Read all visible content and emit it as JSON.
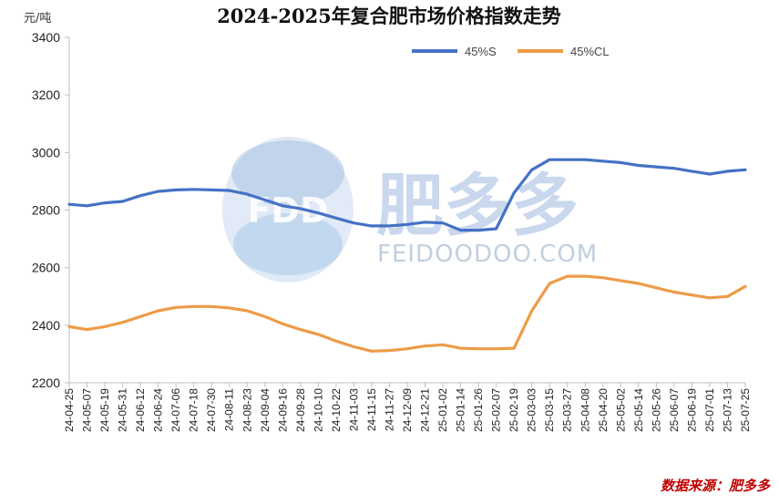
{
  "watermark": {
    "logo_text": "FDD",
    "brand": "肥多多",
    "domain": "FEIDOODOO.COM"
  },
  "source_label": "数据来源：肥多多",
  "chart_data": {
    "type": "line",
    "title": "2024-2025年复合肥市场价格指数走势",
    "ylabel": "元/吨",
    "xlabel": "",
    "ylim": [
      2200,
      3400
    ],
    "yticks": [
      2200,
      2400,
      2600,
      2800,
      3000,
      3200,
      3400
    ],
    "legend_position": "top-right",
    "grid": false,
    "categories": [
      "24-04-25",
      "24-05-07",
      "24-05-19",
      "24-05-31",
      "24-06-12",
      "24-06-24",
      "24-07-06",
      "24-07-18",
      "24-07-30",
      "24-08-11",
      "24-08-23",
      "24-09-04",
      "24-09-16",
      "24-09-28",
      "24-10-10",
      "24-10-22",
      "24-11-03",
      "24-11-15",
      "24-11-27",
      "24-12-09",
      "24-12-21",
      "25-01-02",
      "25-01-14",
      "25-01-26",
      "25-02-07",
      "25-02-19",
      "25-03-03",
      "25-03-15",
      "25-03-27",
      "25-04-08",
      "25-04-20",
      "25-05-02",
      "25-05-14",
      "25-05-26",
      "25-06-07",
      "25-06-19",
      "25-07-01",
      "25-07-13",
      "25-07-25"
    ],
    "series": [
      {
        "name": "45%S",
        "color": "#4472c4",
        "values": [
          2820,
          2815,
          2825,
          2830,
          2850,
          2865,
          2870,
          2872,
          2870,
          2868,
          2855,
          2835,
          2815,
          2805,
          2790,
          2772,
          2755,
          2745,
          2745,
          2750,
          2758,
          2755,
          2730,
          2730,
          2735,
          2860,
          2940,
          2975,
          2975,
          2975,
          2970,
          2965,
          2955,
          2950,
          2945,
          2935,
          2925,
          2935,
          2940
        ],
        "marker_color": "#4a76b9"
      },
      {
        "name": "45%CL",
        "color": "#ed9b48",
        "values": [
          2395,
          2385,
          2395,
          2410,
          2430,
          2450,
          2462,
          2465,
          2465,
          2460,
          2450,
          2430,
          2405,
          2385,
          2368,
          2345,
          2325,
          2310,
          2312,
          2318,
          2328,
          2332,
          2320,
          2318,
          2318,
          2320,
          2450,
          2545,
          2570,
          2570,
          2565,
          2555,
          2545,
          2530,
          2515,
          2505,
          2495,
          2500,
          2535
        ]
      }
    ]
  }
}
